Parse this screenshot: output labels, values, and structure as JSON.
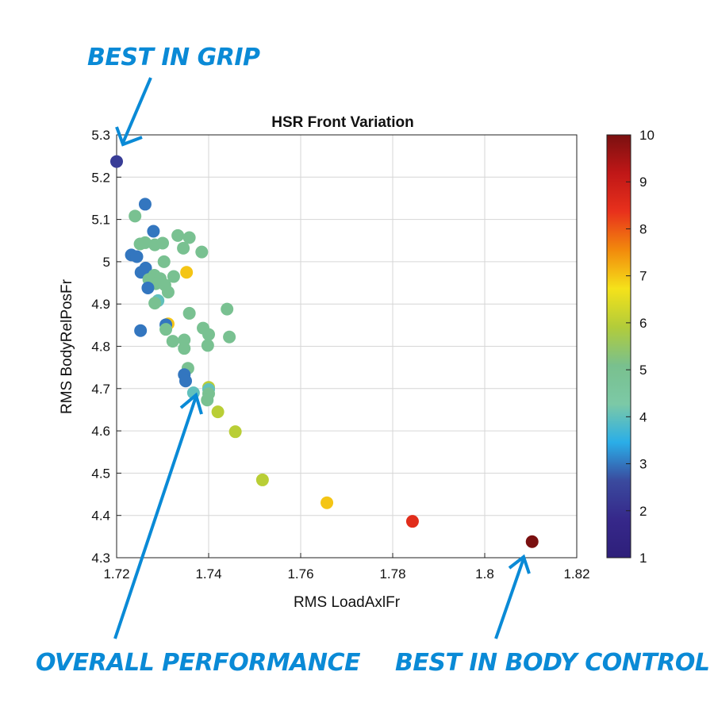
{
  "chart_data": {
    "type": "scatter",
    "title": "HSR Front Variation",
    "xlabel": "RMS LoadAxlFr",
    "ylabel": "RMS BodyRelPosFr",
    "xlim": [
      1.72,
      1.82
    ],
    "ylim": [
      4.3,
      5.3
    ],
    "xticks": [
      1.72,
      1.74,
      1.76,
      1.78,
      1.8,
      1.82
    ],
    "xtick_labels": [
      "1.72",
      "1.74",
      "1.76",
      "1.78",
      "1.8",
      "1.82"
    ],
    "yticks": [
      4.3,
      4.4,
      4.5,
      4.6,
      4.7,
      4.8,
      4.9,
      5.0,
      5.1,
      5.2,
      5.3
    ],
    "ytick_labels": [
      "4.3",
      "4.4",
      "4.5",
      "4.6",
      "4.7",
      "4.8",
      "4.9",
      "5",
      "5.1",
      "5.2",
      "5.3"
    ],
    "grid": true,
    "colorbar": {
      "range": [
        1,
        10
      ],
      "ticks": [
        1,
        2,
        3,
        4,
        5,
        6,
        7,
        8,
        9,
        10
      ],
      "tick_labels": [
        "1",
        "2",
        "3",
        "4",
        "5",
        "6",
        "7",
        "8",
        "9",
        "10"
      ],
      "placement": "right",
      "colormap": [
        "#2e1f7a",
        "#36288a",
        "#3a4a9e",
        "#2aaee8",
        "#7cc9a6",
        "#79c08e",
        "#b2cc3a",
        "#f5e21a",
        "#f28a0c",
        "#e8311c",
        "#c01717",
        "#7a1010"
      ]
    },
    "points": [
      {
        "x": 1.72,
        "y": 5.237,
        "c": 2.3
      },
      {
        "x": 1.7262,
        "y": 5.136,
        "c": 3.0
      },
      {
        "x": 1.724,
        "y": 5.108,
        "c": 5.0
      },
      {
        "x": 1.728,
        "y": 5.072,
        "c": 3.0
      },
      {
        "x": 1.7333,
        "y": 5.062,
        "c": 5.0
      },
      {
        "x": 1.7358,
        "y": 5.057,
        "c": 5.0
      },
      {
        "x": 1.7251,
        "y": 5.042,
        "c": 5.0
      },
      {
        "x": 1.7262,
        "y": 5.045,
        "c": 5.0
      },
      {
        "x": 1.7283,
        "y": 5.04,
        "c": 5.0
      },
      {
        "x": 1.73,
        "y": 5.044,
        "c": 5.0
      },
      {
        "x": 1.7345,
        "y": 5.032,
        "c": 5.0
      },
      {
        "x": 1.7385,
        "y": 5.023,
        "c": 5.0
      },
      {
        "x": 1.7232,
        "y": 5.016,
        "c": 3.0
      },
      {
        "x": 1.7244,
        "y": 5.012,
        "c": 3.0
      },
      {
        "x": 1.7303,
        "y": 5.0,
        "c": 5.0
      },
      {
        "x": 1.7263,
        "y": 4.985,
        "c": 3.0
      },
      {
        "x": 1.7253,
        "y": 4.975,
        "c": 3.0
      },
      {
        "x": 1.7352,
        "y": 4.975,
        "c": 7.0
      },
      {
        "x": 1.7282,
        "y": 4.968,
        "c": 5.0
      },
      {
        "x": 1.7324,
        "y": 4.965,
        "c": 5.0
      },
      {
        "x": 1.727,
        "y": 4.958,
        "c": 5.0
      },
      {
        "x": 1.7295,
        "y": 4.96,
        "c": 5.0
      },
      {
        "x": 1.7285,
        "y": 4.948,
        "c": 5.0
      },
      {
        "x": 1.7305,
        "y": 4.945,
        "c": 5.0
      },
      {
        "x": 1.7268,
        "y": 4.938,
        "c": 3.0
      },
      {
        "x": 1.7312,
        "y": 4.928,
        "c": 5.0
      },
      {
        "x": 1.729,
        "y": 4.908,
        "c": 4.0
      },
      {
        "x": 1.7283,
        "y": 4.902,
        "c": 5.0
      },
      {
        "x": 1.744,
        "y": 4.888,
        "c": 5.0
      },
      {
        "x": 1.7358,
        "y": 4.878,
        "c": 5.0
      },
      {
        "x": 1.7312,
        "y": 4.853,
        "c": 7.0
      },
      {
        "x": 1.7307,
        "y": 4.851,
        "c": 3.0
      },
      {
        "x": 1.7307,
        "y": 4.84,
        "c": 5.0
      },
      {
        "x": 1.7252,
        "y": 4.837,
        "c": 3.0
      },
      {
        "x": 1.7388,
        "y": 4.843,
        "c": 5.0
      },
      {
        "x": 1.74,
        "y": 4.828,
        "c": 5.0
      },
      {
        "x": 1.7445,
        "y": 4.822,
        "c": 5.0
      },
      {
        "x": 1.7322,
        "y": 4.812,
        "c": 5.0
      },
      {
        "x": 1.7347,
        "y": 4.815,
        "c": 5.0
      },
      {
        "x": 1.7347,
        "y": 4.795,
        "c": 5.0
      },
      {
        "x": 1.7398,
        "y": 4.802,
        "c": 5.0
      },
      {
        "x": 1.7355,
        "y": 4.748,
        "c": 5.0
      },
      {
        "x": 1.7347,
        "y": 4.733,
        "c": 3.0
      },
      {
        "x": 1.735,
        "y": 4.718,
        "c": 3.0
      },
      {
        "x": 1.74,
        "y": 4.703,
        "c": 6.0
      },
      {
        "x": 1.74,
        "y": 4.698,
        "c": 4.0
      },
      {
        "x": 1.74,
        "y": 4.688,
        "c": 5.0
      },
      {
        "x": 1.7367,
        "y": 4.69,
        "c": 4.0
      },
      {
        "x": 1.7397,
        "y": 4.673,
        "c": 5.0
      },
      {
        "x": 1.742,
        "y": 4.645,
        "c": 6.0
      },
      {
        "x": 1.7458,
        "y": 4.598,
        "c": 6.0
      },
      {
        "x": 1.7517,
        "y": 4.484,
        "c": 6.0
      },
      {
        "x": 1.7657,
        "y": 4.43,
        "c": 7.0
      },
      {
        "x": 1.7843,
        "y": 4.386,
        "c": 8.5
      },
      {
        "x": 1.8103,
        "y": 4.338,
        "c": 10.0
      }
    ]
  },
  "annotations": {
    "best_grip": "BEST IN GRIP",
    "overall": "OVERALL PERFORMANCE",
    "body_control": "BEST IN BODY CONTROL",
    "color": "#0a8ad6"
  }
}
